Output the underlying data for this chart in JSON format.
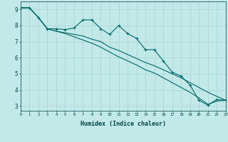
{
  "xlabel": "Humidex (Indice chaleur)",
  "xlim": [
    0,
    23
  ],
  "ylim": [
    2.7,
    9.5
  ],
  "xticks": [
    0,
    1,
    2,
    3,
    4,
    5,
    6,
    7,
    8,
    9,
    10,
    11,
    12,
    13,
    14,
    15,
    16,
    17,
    18,
    19,
    20,
    21,
    22,
    23
  ],
  "yticks": [
    3,
    4,
    5,
    6,
    7,
    8,
    9
  ],
  "bg_color": "#c2e8e8",
  "grid_color": "#a8d4d4",
  "line_color": "#006868",
  "line1_x": [
    0,
    1,
    2,
    3,
    4,
    5,
    6,
    7,
    8,
    9,
    10,
    11,
    12,
    13,
    14,
    15,
    16,
    17,
    18,
    19,
    20,
    21,
    22,
    23
  ],
  "line1_y": [
    9.1,
    9.1,
    8.5,
    7.8,
    7.8,
    7.75,
    7.85,
    8.35,
    8.35,
    7.8,
    7.45,
    8.0,
    7.5,
    7.2,
    6.5,
    6.5,
    5.8,
    5.1,
    4.85,
    4.3,
    3.35,
    3.05,
    3.4,
    3.35
  ],
  "line2_x": [
    0,
    1,
    2,
    3,
    4,
    5,
    6,
    7,
    8,
    9,
    10,
    11,
    12,
    13,
    14,
    15,
    16,
    17,
    18,
    19,
    20,
    21,
    22,
    23
  ],
  "line2_y": [
    9.1,
    9.1,
    8.5,
    7.8,
    7.65,
    7.55,
    7.45,
    7.35,
    7.15,
    7.0,
    6.65,
    6.45,
    6.2,
    5.95,
    5.7,
    5.5,
    5.25,
    5.0,
    4.75,
    4.45,
    4.15,
    3.85,
    3.6,
    3.35
  ],
  "line3_x": [
    0,
    1,
    2,
    3,
    4,
    5,
    6,
    7,
    8,
    9,
    10,
    11,
    12,
    13,
    14,
    15,
    16,
    17,
    18,
    19,
    20,
    21,
    22,
    23
  ],
  "line3_y": [
    9.1,
    9.1,
    8.5,
    7.8,
    7.65,
    7.5,
    7.3,
    7.1,
    6.9,
    6.65,
    6.35,
    6.05,
    5.8,
    5.55,
    5.25,
    5.05,
    4.75,
    4.45,
    4.15,
    3.85,
    3.5,
    3.1,
    3.3,
    3.35
  ]
}
